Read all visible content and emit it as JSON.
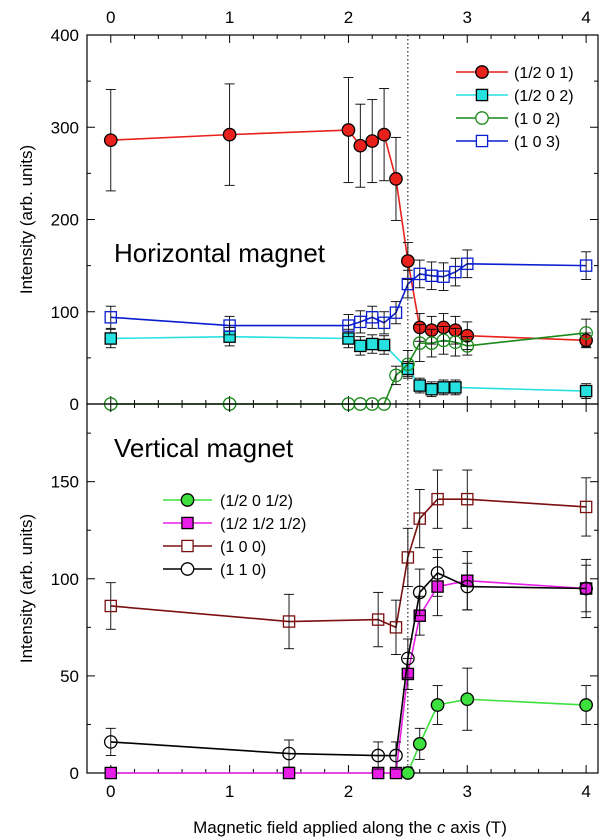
{
  "chart_data": [
    {
      "type": "line",
      "annotation": "Horizontal magnet",
      "ylabel": "Intensity (arb. units)",
      "xlim": [
        -0.2,
        4.1
      ],
      "ylim": [
        0,
        400
      ],
      "xticks": [
        "0",
        "1",
        "2",
        "3",
        "4"
      ],
      "yticks": [
        "0",
        "100",
        "200",
        "300",
        "400"
      ],
      "reference_line_x": 2.5,
      "legend_position": "top-right",
      "series": [
        {
          "name": "(1/2 0 1)",
          "color": "#e8211c",
          "marker": "circle",
          "filled": true,
          "x": [
            0,
            1,
            2,
            2.1,
            2.2,
            2.3,
            2.4,
            2.5,
            2.6,
            2.7,
            2.8,
            2.9,
            3,
            4
          ],
          "y": [
            286,
            292,
            297,
            280,
            285,
            292,
            244,
            155,
            83,
            80,
            83,
            80,
            74,
            69
          ],
          "err": [
            55,
            55,
            57,
            45,
            45,
            50,
            45,
            20,
            15,
            15,
            15,
            15,
            15,
            8
          ]
        },
        {
          "name": "(1/2 0 2)",
          "color": "#27e0e0",
          "marker": "square",
          "filled": true,
          "x": [
            0,
            1,
            2,
            2.1,
            2.2,
            2.3,
            2.5,
            2.6,
            2.7,
            2.8,
            2.9,
            4
          ],
          "y": [
            71,
            73,
            71,
            63,
            65,
            64,
            38,
            20,
            16,
            18,
            18,
            14
          ],
          "err": [
            10,
            10,
            10,
            10,
            10,
            10,
            8,
            8,
            8,
            8,
            8,
            8
          ]
        },
        {
          "name": "(1 0 2)",
          "color": "#1a8a1a",
          "marker": "circle",
          "filled": false,
          "x": [
            0,
            1,
            2,
            2.1,
            2.2,
            2.3,
            2.4,
            2.5,
            2.6,
            2.7,
            2.8,
            2.9,
            3,
            4
          ],
          "y": [
            0,
            0,
            0,
            0,
            0,
            0,
            31,
            43,
            66,
            66,
            69,
            67,
            63,
            77
          ],
          "err": [
            0,
            0,
            0,
            0,
            0,
            0,
            10,
            15,
            20,
            15,
            15,
            15,
            10,
            15
          ]
        },
        {
          "name": "(1 0 3)",
          "color": "#0a1ecf",
          "marker": "square",
          "filled": false,
          "x": [
            0,
            1,
            2,
            2.1,
            2.2,
            2.3,
            2.4,
            2.5,
            2.6,
            2.7,
            2.8,
            2.9,
            3,
            4
          ],
          "y": [
            94,
            85,
            85,
            89,
            94,
            88,
            99,
            130,
            141,
            139,
            138,
            143,
            152,
            150
          ],
          "err": [
            12,
            10,
            12,
            12,
            12,
            12,
            12,
            15,
            15,
            15,
            15,
            15,
            15,
            15
          ]
        }
      ]
    },
    {
      "type": "line",
      "annotation": "Vertical magnet",
      "xlabel_prefix": "Magnetic field applied along the ",
      "xlabel_italic": "c",
      "xlabel_suffix": " axis (T)",
      "ylabel": "Intensity (arb. units)",
      "xlim": [
        -0.2,
        4.1
      ],
      "ylim": [
        0,
        190
      ],
      "xticks": [
        "0",
        "1",
        "2",
        "3",
        "4"
      ],
      "yticks": [
        "0",
        "50",
        "100",
        "150"
      ],
      "reference_line_x": 2.5,
      "legend_position": "middle-left",
      "series": [
        {
          "name": "(1/2 0 1/2)",
          "color": "#3ee03e",
          "marker": "circle",
          "filled": true,
          "x": [
            2.5,
            2.6,
            2.75,
            3,
            4
          ],
          "y": [
            0,
            15,
            35,
            38,
            35
          ],
          "err": [
            3,
            8,
            10,
            16,
            10
          ]
        },
        {
          "name": "(1/2 1/2 1/2)",
          "color": "#e81ee8",
          "marker": "square",
          "filled": true,
          "x": [
            0,
            1.5,
            2.25,
            2.4,
            2.5,
            2.6,
            2.75,
            3,
            4
          ],
          "y": [
            0,
            0,
            0,
            0,
            51,
            81,
            96,
            99,
            95
          ],
          "err": [
            0,
            0,
            0,
            0,
            8,
            10,
            15,
            15,
            15
          ]
        },
        {
          "name": "(1 0 0)",
          "color": "#7a1010",
          "marker": "square",
          "filled": false,
          "x": [
            0,
            1.5,
            2.25,
            2.4,
            2.5,
            2.6,
            2.75,
            3,
            4
          ],
          "y": [
            86,
            78,
            79,
            75,
            111,
            131,
            141,
            141,
            137
          ],
          "err": [
            12,
            14,
            14,
            14,
            15,
            15,
            15,
            15,
            15
          ]
        },
        {
          "name": "(1 1 0)",
          "color": "#000000",
          "marker": "circle",
          "filled": false,
          "x": [
            0,
            1.5,
            2.25,
            2.4,
            2.5,
            2.6,
            2.75,
            3,
            4
          ],
          "y": [
            16,
            10,
            9,
            9,
            59,
            93,
            103,
            96,
            95
          ],
          "err": [
            7,
            7,
            7,
            7,
            10,
            12,
            12,
            12,
            12
          ]
        }
      ]
    }
  ]
}
